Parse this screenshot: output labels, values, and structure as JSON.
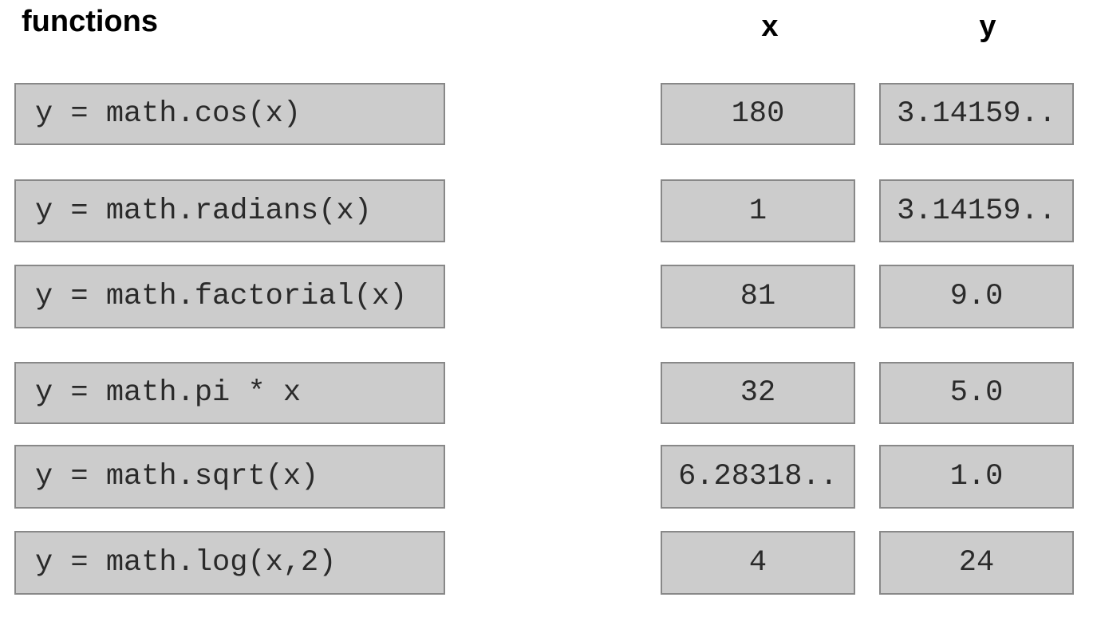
{
  "header": {
    "functions_label": "functions",
    "x_label": "x",
    "y_label": "y"
  },
  "rows": [
    {
      "function": "y = math.cos(x)",
      "x": "180",
      "y": "3.14159.."
    },
    {
      "function": "y = math.radians(x)",
      "x": "1",
      "y": "3.14159.."
    },
    {
      "function": "y = math.factorial(x)",
      "x": "81",
      "y": "9.0"
    },
    {
      "function": "y = math.pi * x",
      "x": "32",
      "y": "5.0"
    },
    {
      "function": "y = math.sqrt(x)",
      "x": "6.28318..",
      "y": "1.0"
    },
    {
      "function": "y = math.log(x,2)",
      "x": "4",
      "y": "24"
    }
  ],
  "colors": {
    "box_fill": "#cccccc",
    "box_border": "#888888"
  }
}
